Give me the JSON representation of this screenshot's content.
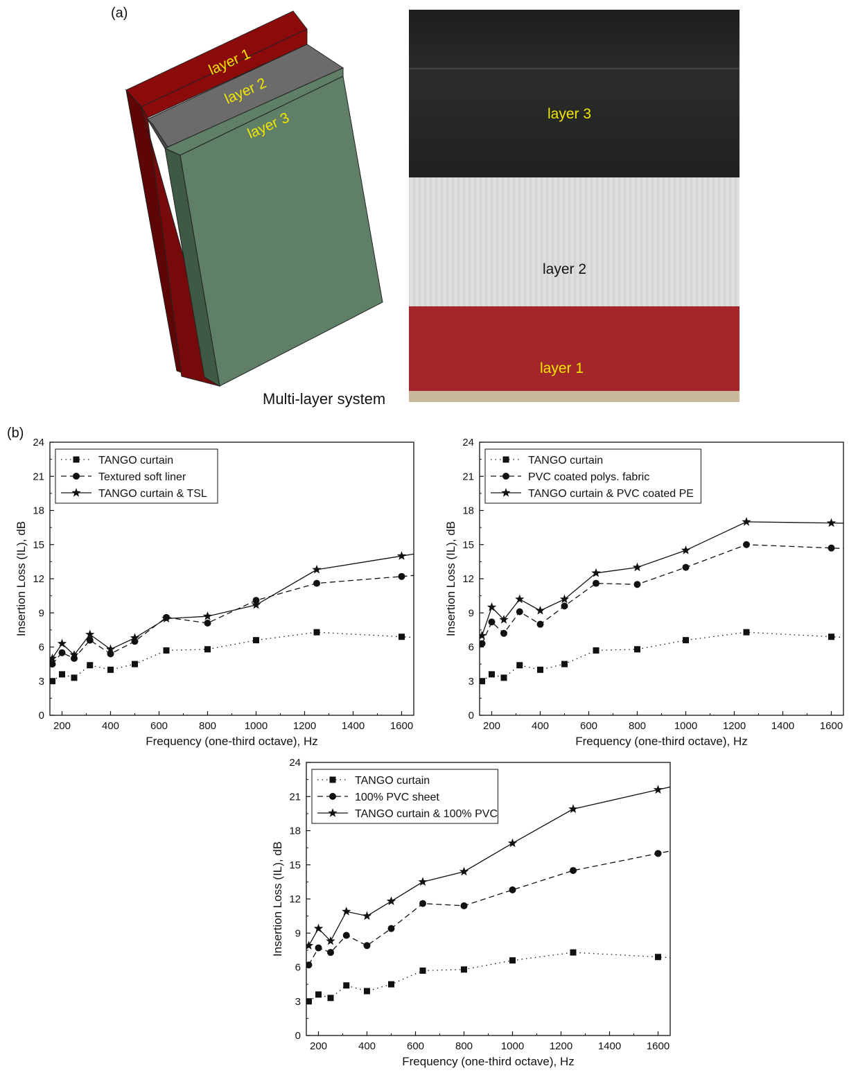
{
  "figure": {
    "panel_a_label": "(a)",
    "panel_b_label": "(b)",
    "caption_a": "Multi-layer system",
    "diagram_labels": [
      "layer 1",
      "layer 2",
      "layer 3"
    ],
    "photo_labels": {
      "top": "layer 3",
      "middle": "layer 2",
      "bottom": "layer 1"
    },
    "colors": {
      "layer1": "#8b0a0a",
      "layer2": "#6b6b6b",
      "layer3": "#5f7f66",
      "label_yellow": "#f2e600"
    }
  },
  "chart_data": [
    {
      "type": "line",
      "xlabel": "Frequency (one-third octave), Hz",
      "ylabel": "Insertion Loss (IL), dB",
      "xlim": [
        150,
        1650
      ],
      "ylim": [
        0,
        24
      ],
      "xticks": [
        200,
        400,
        600,
        800,
        1000,
        1200,
        1400,
        1600
      ],
      "yticks": [
        0,
        3,
        6,
        9,
        12,
        15,
        18,
        21,
        24
      ],
      "grid": false,
      "legend": "top-left",
      "x": [
        160,
        200,
        250,
        315,
        400,
        500,
        630,
        800,
        1000,
        1250,
        1600
      ],
      "series": [
        {
          "name": "TANGO curtain",
          "style": "dotted",
          "marker": "square",
          "values": [
            3.0,
            3.6,
            3.3,
            4.4,
            4.0,
            4.5,
            5.7,
            5.8,
            6.6,
            7.3,
            6.9
          ]
        },
        {
          "name": "Textured soft liner",
          "style": "dashed",
          "marker": "circle",
          "values": [
            4.5,
            5.5,
            5.0,
            6.6,
            5.4,
            6.5,
            8.6,
            8.1,
            10.1,
            11.6,
            12.2
          ]
        },
        {
          "name": "TANGO curtain &  TSL",
          "style": "solid",
          "marker": "star",
          "values": [
            5.0,
            6.3,
            5.3,
            7.1,
            5.8,
            6.8,
            8.5,
            8.7,
            9.7,
            12.8,
            14.0
          ]
        }
      ]
    },
    {
      "type": "line",
      "xlabel": "Frequency (one-third octave), Hz",
      "ylabel": "Insertion Loss (IL), dB",
      "xlim": [
        150,
        1650
      ],
      "ylim": [
        0,
        24
      ],
      "xticks": [
        200,
        400,
        600,
        800,
        1000,
        1200,
        1400,
        1600
      ],
      "yticks": [
        0,
        3,
        6,
        9,
        12,
        15,
        18,
        21,
        24
      ],
      "grid": false,
      "legend": "top-left",
      "x": [
        160,
        200,
        250,
        315,
        400,
        500,
        630,
        800,
        1000,
        1250,
        1600
      ],
      "series": [
        {
          "name": "TANGO curtain",
          "style": "dotted",
          "marker": "square",
          "values": [
            3.0,
            3.6,
            3.3,
            4.4,
            4.0,
            4.5,
            5.7,
            5.8,
            6.6,
            7.3,
            6.9
          ]
        },
        {
          "name": "PVC coated polys. fabric",
          "style": "dashed",
          "marker": "circle",
          "values": [
            6.3,
            8.2,
            7.2,
            9.1,
            8.0,
            9.6,
            11.6,
            11.5,
            13.0,
            15.0,
            14.7
          ]
        },
        {
          "name": "TANGO curtain & PVC coated PE",
          "style": "solid",
          "marker": "star",
          "values": [
            7.0,
            9.5,
            8.4,
            10.2,
            9.2,
            10.2,
            12.5,
            13.0,
            14.5,
            17.0,
            16.9
          ]
        }
      ]
    },
    {
      "type": "line",
      "xlabel": "Frequency (one-third octave), Hz",
      "ylabel": "Insertion Loss (IL), dB",
      "xlim": [
        150,
        1650
      ],
      "ylim": [
        0,
        24
      ],
      "xticks": [
        200,
        400,
        600,
        800,
        1000,
        1200,
        1400,
        1600
      ],
      "yticks": [
        0,
        3,
        6,
        9,
        12,
        15,
        18,
        21,
        24
      ],
      "grid": false,
      "legend": "top-left",
      "x": [
        160,
        200,
        250,
        315,
        400,
        500,
        630,
        800,
        1000,
        1250,
        1600
      ],
      "series": [
        {
          "name": "TANGO curtain",
          "style": "dotted",
          "marker": "square",
          "values": [
            3.0,
            3.6,
            3.3,
            4.4,
            3.9,
            4.5,
            5.7,
            5.8,
            6.6,
            7.3,
            6.9
          ]
        },
        {
          "name": "100% PVC sheet",
          "style": "dashed",
          "marker": "circle",
          "values": [
            6.2,
            7.7,
            7.3,
            8.8,
            7.9,
            9.4,
            11.6,
            11.4,
            12.8,
            14.5,
            16.0
          ]
        },
        {
          "name": "TANGO curtain & 100% PVC",
          "style": "solid",
          "marker": "star",
          "values": [
            7.9,
            9.4,
            8.3,
            10.9,
            10.5,
            11.8,
            13.5,
            14.4,
            16.9,
            19.9,
            21.6
          ]
        }
      ]
    }
  ]
}
